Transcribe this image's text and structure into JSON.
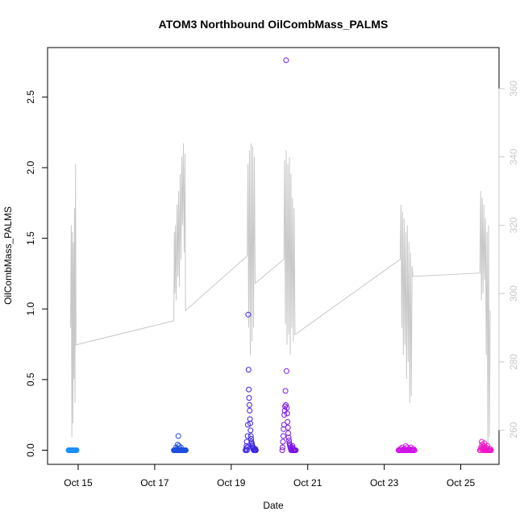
{
  "chart_data": {
    "type": "scatter",
    "title": "ATOM3 Northbound OilCombMass_PALMS",
    "xlabel": "Date",
    "ylabel": "OilCombMass_PALMS",
    "x_axis": {
      "type": "date",
      "range": [
        "2017-10-14T04:48",
        "2017-10-26T00:00"
      ],
      "ticks": [
        {
          "value": "2017-10-15",
          "label": "Oct 15"
        },
        {
          "value": "2017-10-17",
          "label": "Oct 17"
        },
        {
          "value": "2017-10-19",
          "label": "Oct 19"
        },
        {
          "value": "2017-10-21",
          "label": "Oct 21"
        },
        {
          "value": "2017-10-23",
          "label": "Oct 23"
        },
        {
          "value": "2017-10-25",
          "label": "Oct 25"
        }
      ]
    },
    "y_left": {
      "range": [
        -0.1,
        2.85
      ],
      "ticks": [
        0.0,
        0.5,
        1.0,
        1.5,
        2.0,
        2.5
      ],
      "tick_labels": [
        "0.0",
        "0.5",
        "1.0",
        "1.5",
        "2.0",
        "2.5"
      ]
    },
    "y_right": {
      "range": [
        250,
        372
      ],
      "ticks": [
        260,
        280,
        300,
        320,
        340,
        360
      ],
      "tick_labels": [
        "260",
        "280",
        "300",
        "320",
        "340",
        "360"
      ],
      "color": "#c8c8c8"
    },
    "grid": false,
    "line_series": {
      "axis": "right",
      "color": "#c8c8c8",
      "points": [
        [
          "2017-10-14T19:12",
          290
        ],
        [
          "2017-10-14T19:40",
          320
        ],
        [
          "2017-10-14T20:00",
          258
        ],
        [
          "2017-10-14T20:20",
          318
        ],
        [
          "2017-10-14T20:40",
          262
        ],
        [
          "2017-10-14T21:00",
          315
        ],
        [
          "2017-10-14T21:20",
          275
        ],
        [
          "2017-10-14T21:40",
          325
        ],
        [
          "2017-10-14T22:00",
          268
        ],
        [
          "2017-10-14T22:20",
          338
        ],
        [
          "2017-10-14T22:40",
          285
        ],
        [
          "2017-10-17T12:00",
          292
        ],
        [
          "2017-10-17T12:20",
          318
        ],
        [
          "2017-10-17T12:40",
          300
        ],
        [
          "2017-10-17T13:00",
          320
        ],
        [
          "2017-10-17T13:30",
          298
        ],
        [
          "2017-10-17T14:00",
          326
        ],
        [
          "2017-10-17T14:30",
          305
        ],
        [
          "2017-10-17T15:00",
          330
        ],
        [
          "2017-10-17T15:30",
          302
        ],
        [
          "2017-10-17T16:00",
          335
        ],
        [
          "2017-10-17T16:30",
          310
        ],
        [
          "2017-10-17T17:00",
          340
        ],
        [
          "2017-10-17T17:30",
          320
        ],
        [
          "2017-10-17T18:00",
          344
        ],
        [
          "2017-10-17T18:30",
          312
        ],
        [
          "2017-10-17T19:00",
          341
        ],
        [
          "2017-10-17T19:20",
          295
        ],
        [
          "2017-10-19T10:00",
          311
        ],
        [
          "2017-10-19T10:30",
          338
        ],
        [
          "2017-10-19T11:00",
          290
        ],
        [
          "2017-10-19T11:30",
          342
        ],
        [
          "2017-10-19T12:00",
          282
        ],
        [
          "2017-10-19T12:30",
          344
        ],
        [
          "2017-10-19T13:00",
          286
        ],
        [
          "2017-10-19T13:30",
          343
        ],
        [
          "2017-10-19T14:00",
          290
        ],
        [
          "2017-10-19T14:30",
          340
        ],
        [
          "2017-10-19T15:00",
          303
        ],
        [
          "2017-10-20T09:00",
          310
        ],
        [
          "2017-10-20T09:30",
          339
        ],
        [
          "2017-10-20T10:00",
          291
        ],
        [
          "2017-10-20T10:30",
          342
        ],
        [
          "2017-10-20T11:00",
          285
        ],
        [
          "2017-10-20T11:30",
          338
        ],
        [
          "2017-10-20T12:00",
          288
        ],
        [
          "2017-10-20T12:30",
          340
        ],
        [
          "2017-10-20T13:00",
          282
        ],
        [
          "2017-10-20T13:30",
          335
        ],
        [
          "2017-10-20T14:00",
          290
        ],
        [
          "2017-10-20T14:30",
          328
        ],
        [
          "2017-10-20T15:00",
          286
        ],
        [
          "2017-10-20T15:30",
          325
        ],
        [
          "2017-10-20T16:00",
          288
        ],
        [
          "2017-10-23T10:00",
          310
        ],
        [
          "2017-10-23T10:30",
          326
        ],
        [
          "2017-10-23T11:00",
          290
        ],
        [
          "2017-10-23T11:30",
          324
        ],
        [
          "2017-10-23T12:00",
          282
        ],
        [
          "2017-10-23T12:30",
          322
        ],
        [
          "2017-10-23T13:00",
          285
        ],
        [
          "2017-10-23T13:30",
          318
        ],
        [
          "2017-10-23T14:00",
          275
        ],
        [
          "2017-10-23T14:30",
          320
        ],
        [
          "2017-10-23T15:00",
          280
        ],
        [
          "2017-10-23T15:30",
          315
        ],
        [
          "2017-10-23T16:00",
          268
        ],
        [
          "2017-10-23T16:30",
          312
        ],
        [
          "2017-10-23T17:00",
          270
        ],
        [
          "2017-10-23T17:30",
          308
        ],
        [
          "2017-10-23T18:00",
          305
        ],
        [
          "2017-10-25T12:00",
          306
        ],
        [
          "2017-10-25T12:30",
          330
        ],
        [
          "2017-10-25T13:00",
          298
        ],
        [
          "2017-10-25T13:30",
          328
        ],
        [
          "2017-10-25T14:00",
          300
        ],
        [
          "2017-10-25T14:30",
          326
        ],
        [
          "2017-10-25T15:00",
          304
        ],
        [
          "2017-10-25T15:30",
          322
        ],
        [
          "2017-10-25T16:00",
          282
        ],
        [
          "2017-10-25T16:30",
          318
        ],
        [
          "2017-10-25T17:00",
          256
        ],
        [
          "2017-10-25T17:30",
          320
        ],
        [
          "2017-10-25T18:00",
          258
        ],
        [
          "2017-10-25T18:30",
          295
        ]
      ]
    },
    "scatter_groups": [
      {
        "color": "#1e90ff",
        "x_start": "2017-10-14T18:00",
        "x_end": "2017-10-14T23:00",
        "values": [
          0,
          0,
          0,
          0,
          0,
          0,
          0,
          0,
          0,
          0,
          0,
          0,
          0,
          0,
          0,
          0,
          0,
          0,
          0,
          0,
          0,
          0,
          0,
          0,
          0,
          0
        ]
      },
      {
        "color": "#1f4fe0",
        "x_start": "2017-10-17T12:00",
        "x_end": "2017-10-17T19:30",
        "values": [
          0,
          0,
          0,
          0,
          0,
          0,
          0,
          0.02,
          0,
          0,
          0.01,
          0,
          0.04,
          0,
          0.1,
          0,
          0.03,
          0,
          0,
          0.01,
          0,
          0,
          0.02,
          0,
          0,
          0,
          0,
          0,
          0,
          0,
          0,
          0,
          0,
          0,
          0,
          0,
          0,
          0
        ]
      },
      {
        "color": "#3b24e6",
        "x_start": "2017-10-19T09:00",
        "x_end": "2017-10-19T15:30",
        "values": [
          0,
          0,
          0.01,
          0.03,
          0.06,
          0,
          0.02,
          0.1,
          0.18,
          0.96,
          0.57,
          0.43,
          0.37,
          0.32,
          0.28,
          0.22,
          0.19,
          0.14,
          0.1,
          0.08,
          0.06,
          0.05,
          0.04,
          0.03,
          0.02,
          0.01,
          0.02,
          0.01,
          0,
          0,
          0,
          0,
          0,
          0.01,
          0,
          0
        ]
      },
      {
        "color": "#7b16e8",
        "x_start": "2017-10-20T08:00",
        "x_end": "2017-10-20T16:30",
        "values": [
          0,
          0.02,
          0.06,
          0.1,
          0.15,
          0.18,
          0.25,
          0.28,
          0.31,
          0.42,
          0.32,
          2.76,
          0.56,
          0.3,
          0.26,
          0.2,
          0.16,
          0.12,
          0.09,
          0.07,
          0.05,
          0.04,
          0.03,
          0.02,
          0.01,
          0,
          0,
          0.01,
          0.02,
          0.03,
          0,
          0.01,
          0,
          0,
          0,
          0,
          0,
          0,
          0
        ]
      },
      {
        "color": "#d012e8",
        "x_start": "2017-10-23T09:00",
        "x_end": "2017-10-23T19:00",
        "values": [
          0,
          0,
          0,
          0,
          0.01,
          0,
          0,
          0.02,
          0,
          0,
          0,
          0.01,
          0,
          0,
          0.03,
          0,
          0,
          0.02,
          0,
          0,
          0.01,
          0,
          0,
          0,
          0.02,
          0,
          0,
          0,
          0,
          0.01,
          0,
          0
        ]
      },
      {
        "color": "#f014c8",
        "x_start": "2017-10-25T12:00",
        "x_end": "2017-10-25T19:00",
        "values": [
          0,
          0,
          0.01,
          0.02,
          0.06,
          0.04,
          0.01,
          0,
          0.02,
          0.03,
          0.05,
          0,
          0.01,
          0,
          0.02,
          0,
          0,
          0.03,
          0.01,
          0,
          0,
          0,
          0,
          0.01,
          0,
          0
        ]
      }
    ]
  }
}
